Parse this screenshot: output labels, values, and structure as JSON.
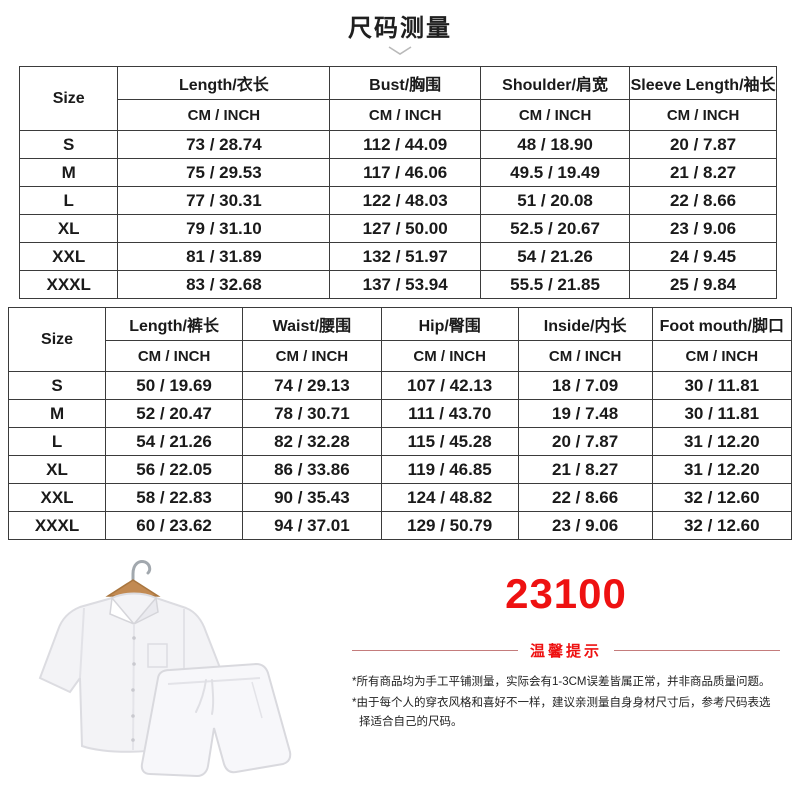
{
  "page": {
    "title": "尺码测量"
  },
  "colors": {
    "accent_red": "#ee1111",
    "divider_line": "#c47c7c",
    "border": "#3b3b3b"
  },
  "table_tops": {
    "size_header": "Size",
    "unit_label": "CM / INCH",
    "columns": [
      "Length/衣长",
      "Bust/胸围",
      "Shoulder/肩宽",
      "Sleeve Length/袖长"
    ],
    "rows": [
      {
        "size": "S",
        "values": [
          "73 / 28.74",
          "112 / 44.09",
          "48 / 18.90",
          "20 / 7.87"
        ]
      },
      {
        "size": "M",
        "values": [
          "75 / 29.53",
          "117 / 46.06",
          "49.5 / 19.49",
          "21 / 8.27"
        ]
      },
      {
        "size": "L",
        "values": [
          "77 / 30.31",
          "122 / 48.03",
          "51 / 20.08",
          "22 / 8.66"
        ]
      },
      {
        "size": "XL",
        "values": [
          "79 / 31.10",
          "127 / 50.00",
          "52.5 / 20.67",
          "23 / 9.06"
        ]
      },
      {
        "size": "XXL",
        "values": [
          "81 / 31.89",
          "132 / 51.97",
          "54 / 21.26",
          "24 / 9.45"
        ]
      },
      {
        "size": "XXXL",
        "values": [
          "83 / 32.68",
          "137 / 53.94",
          "55.5 / 21.85",
          "25 / 9.84"
        ]
      }
    ]
  },
  "table_bottoms": {
    "size_header": "Size",
    "unit_label": "CM / INCH",
    "columns": [
      "Length/裤长",
      "Waist/腰围",
      "Hip/臀围",
      "Inside/内长",
      "Foot mouth/脚口"
    ],
    "rows": [
      {
        "size": "S",
        "values": [
          "50 / 19.69",
          "74 / 29.13",
          "107 / 42.13",
          "18 / 7.09",
          "30 / 11.81"
        ]
      },
      {
        "size": "M",
        "values": [
          "52 / 20.47",
          "78 / 30.71",
          "111 / 43.70",
          "19 / 7.48",
          "30 / 11.81"
        ]
      },
      {
        "size": "L",
        "values": [
          "54 / 21.26",
          "82 / 32.28",
          "115 / 45.28",
          "20 / 7.87",
          "31 / 12.20"
        ]
      },
      {
        "size": "XL",
        "values": [
          "56 / 22.05",
          "86 / 33.86",
          "119 / 46.85",
          "21 / 8.27",
          "31 / 12.20"
        ]
      },
      {
        "size": "XXL",
        "values": [
          "58 / 22.83",
          "90 / 35.43",
          "124 / 48.82",
          "22 / 8.66",
          "32 / 12.60"
        ]
      },
      {
        "size": "XXXL",
        "values": [
          "60 / 23.62",
          "94 / 37.01",
          "129 / 50.79",
          "23 / 9.06",
          "32 / 12.60"
        ]
      }
    ]
  },
  "footer": {
    "product_code": "23100",
    "tips_title": "温馨提示",
    "tips": [
      "*所有商品均为手工平铺测量，实际会有1-3CM误差皆属正常，并非商品质量问题。",
      "*由于每个人的穿衣风格和喜好不一样，建议亲测量自身身材尺寸后，参考尺码表选择适合自己的尺码。"
    ]
  }
}
